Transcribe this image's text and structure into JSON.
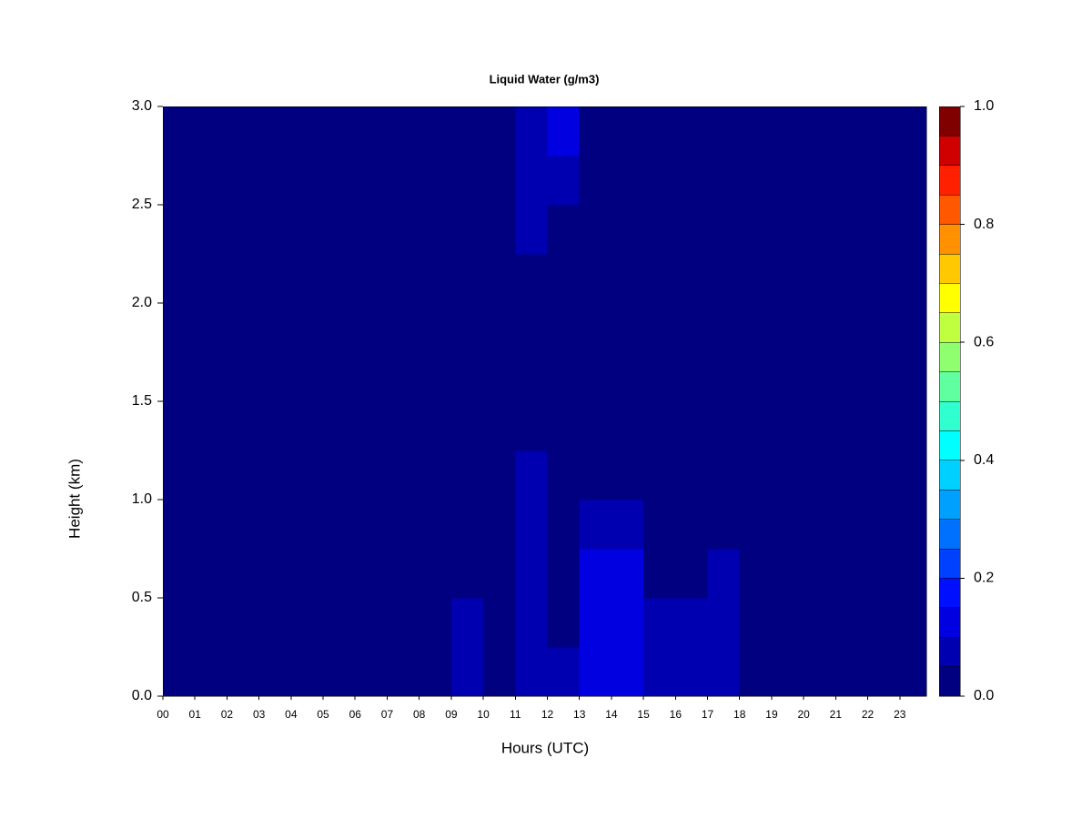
{
  "chart_data": {
    "type": "heatmap",
    "title": "Liquid Water (g/m3)",
    "x_label": "Hours (UTC)",
    "y_label": "Height (km)",
    "xlim": [
      0,
      23.83
    ],
    "ylim": [
      0,
      3
    ],
    "xticks": [
      {
        "value": 0,
        "label": "00"
      },
      {
        "value": 1,
        "label": "01"
      },
      {
        "value": 2,
        "label": "02"
      },
      {
        "value": 3,
        "label": "03"
      },
      {
        "value": 4,
        "label": "04"
      },
      {
        "value": 5,
        "label": "05"
      },
      {
        "value": 6,
        "label": "06"
      },
      {
        "value": 7,
        "label": "07"
      },
      {
        "value": 8,
        "label": "08"
      },
      {
        "value": 9,
        "label": "09"
      },
      10,
      11,
      12,
      13,
      14,
      15,
      16,
      17,
      18,
      19,
      20,
      21,
      22,
      23
    ],
    "yticks": [
      {
        "value": 0,
        "label": "0.0"
      },
      0.5,
      {
        "value": 1,
        "label": "1.0"
      },
      1.5,
      {
        "value": 2,
        "label": "2.0"
      },
      2.5,
      {
        "value": 3,
        "label": "3.0"
      }
    ],
    "x_edges": [
      0,
      1,
      2,
      3,
      4,
      5,
      6,
      7,
      8,
      9,
      10,
      11,
      12,
      13,
      14,
      15,
      16,
      17,
      18,
      19,
      20,
      21,
      22,
      23,
      23.83
    ],
    "y_edges": [
      0,
      0.25,
      0.5,
      0.75,
      1,
      1.25,
      1.5,
      1.75,
      2,
      2.25,
      2.5,
      2.75,
      3
    ],
    "z": [
      [
        0,
        0,
        0,
        0,
        0,
        0,
        0,
        0,
        0,
        0.06,
        0.04,
        0.08,
        0.06,
        0.12,
        0.13,
        0.09,
        0.07,
        0.07,
        0.03,
        0,
        0,
        0,
        0,
        0
      ],
      [
        0,
        0,
        0,
        0,
        0,
        0,
        0,
        0,
        0,
        0.05,
        0.03,
        0.07,
        0.04,
        0.12,
        0.12,
        0.08,
        0.06,
        0.06,
        0.02,
        0,
        0,
        0,
        0,
        0
      ],
      [
        0,
        0,
        0,
        0,
        0,
        0,
        0,
        0,
        0,
        0.03,
        0.02,
        0.06,
        0.02,
        0.11,
        0.1,
        0.04,
        0.03,
        0.05,
        0,
        0,
        0,
        0,
        0,
        0
      ],
      [
        0,
        0,
        0,
        0,
        0,
        0,
        0,
        0,
        0,
        0.02,
        0.02,
        0.06,
        0.01,
        0.08,
        0.07,
        0.01,
        0,
        0.03,
        0,
        0,
        0,
        0,
        0,
        0
      ],
      [
        0,
        0,
        0,
        0,
        0,
        0,
        0,
        0,
        0,
        0,
        0,
        0.05,
        0,
        0.02,
        0.01,
        0,
        0,
        0,
        0,
        0,
        0,
        0,
        0,
        0
      ],
      [
        0,
        0,
        0,
        0,
        0,
        0,
        0,
        0,
        0,
        0,
        0,
        0.04,
        0,
        0,
        0,
        0,
        0,
        0,
        0,
        0,
        0,
        0,
        0,
        0
      ],
      [
        0,
        0,
        0,
        0,
        0,
        0,
        0,
        0,
        0,
        0,
        0,
        0.04,
        0,
        0,
        0,
        0,
        0,
        0,
        0,
        0,
        0,
        0,
        0,
        0
      ],
      [
        0,
        0,
        0,
        0,
        0,
        0,
        0,
        0,
        0,
        0,
        0,
        0.04,
        0,
        0,
        0,
        0,
        0,
        0,
        0,
        0,
        0,
        0,
        0,
        0
      ],
      [
        0,
        0,
        0,
        0,
        0,
        0,
        0,
        0,
        0,
        0,
        0,
        0.04,
        0,
        0,
        0,
        0,
        0,
        0,
        0,
        0,
        0,
        0,
        0,
        0
      ],
      [
        0,
        0,
        0,
        0,
        0,
        0,
        0,
        0,
        0,
        0,
        0,
        0.05,
        0.03,
        0,
        0,
        0,
        0,
        0,
        0,
        0,
        0,
        0,
        0,
        0
      ],
      [
        0,
        0,
        0,
        0,
        0,
        0,
        0,
        0,
        0,
        0,
        0,
        0.07,
        0.05,
        0,
        0,
        0,
        0,
        0,
        0,
        0,
        0,
        0,
        0,
        0
      ],
      [
        0,
        0,
        0,
        0,
        0,
        0,
        0,
        0,
        0,
        0.02,
        0.02,
        0.07,
        0.1,
        0,
        0,
        0,
        0,
        0,
        0,
        0,
        0,
        0,
        0,
        0
      ]
    ],
    "levels": [
      0,
      0.05,
      0.1,
      0.15,
      0.2,
      0.25,
      0.3,
      0.35,
      0.4,
      0.45,
      0.5,
      0.55,
      0.6,
      0.65,
      0.7,
      0.75,
      0.8,
      0.85,
      0.9,
      0.95,
      1
    ],
    "colors": [
      "#000080",
      "#0000B0",
      "#0000E0",
      "#0010FF",
      "#0040FF",
      "#0070FF",
      "#00A0FF",
      "#00D0FF",
      "#00FFFF",
      "#30FFCF",
      "#60FF9F",
      "#90FF6F",
      "#C0FF3F",
      "#FFFF00",
      "#FFC800",
      "#FF9000",
      "#FF5800",
      "#FF2000",
      "#D00000",
      "#800000"
    ],
    "colorbar_lim": [
      0,
      1
    ],
    "colorbar_ticks": [
      {
        "value": 0,
        "label": "0.0"
      },
      0.2,
      0.4,
      0.6,
      0.8,
      {
        "value": 1,
        "label": "1.0"
      }
    ]
  }
}
